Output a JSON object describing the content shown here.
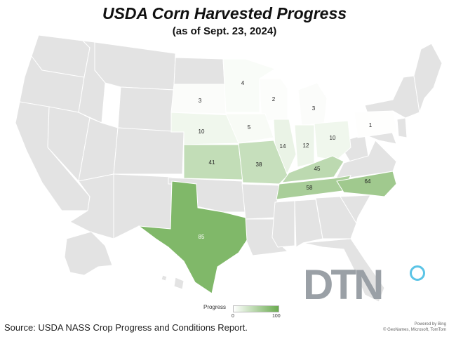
{
  "title": "USDA Corn Harvested Progress",
  "subtitle": "(as of Sept. 23, 2024)",
  "colors": {
    "no_data": "#e3e3e3",
    "scale_low": "#ffffff",
    "scale_high": "#6aab4f",
    "border": "#ffffff"
  },
  "states": [
    {
      "code": "SD",
      "value": 3
    },
    {
      "code": "MN",
      "value": 4
    },
    {
      "code": "WI",
      "value": 2
    },
    {
      "code": "MI",
      "value": 3
    },
    {
      "code": "PA",
      "value": 1
    },
    {
      "code": "NE",
      "value": 10
    },
    {
      "code": "IA",
      "value": 5
    },
    {
      "code": "IL",
      "value": 14
    },
    {
      "code": "IN",
      "value": 12
    },
    {
      "code": "OH",
      "value": 10
    },
    {
      "code": "KS",
      "value": 41
    },
    {
      "code": "MO",
      "value": 38
    },
    {
      "code": "KY",
      "value": 45
    },
    {
      "code": "TN",
      "value": 58
    },
    {
      "code": "NC",
      "value": 64
    },
    {
      "code": "TX",
      "value": 85
    }
  ],
  "legend": {
    "title": "Progress",
    "min": "0",
    "max": "100"
  },
  "source": "Source: USDA NASS Crop Progress and Conditions Report.",
  "brand": "DTN",
  "powered_by": "Powered by Bing",
  "attribution": "© GeoNames, Microsoft, TomTom"
}
